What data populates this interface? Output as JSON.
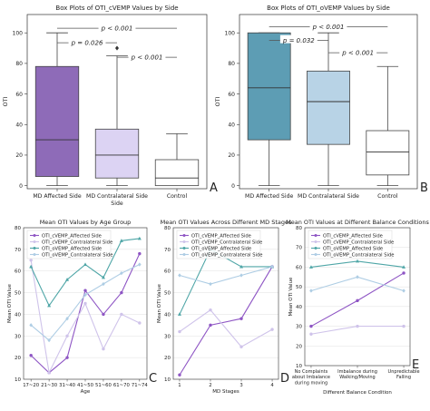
{
  "colors": {
    "purple": "#8e6bb8",
    "lavender": "#dcd3f3",
    "white": "#ffffff",
    "teal": "#5d9db4",
    "pale_blue": "#b8d3e6",
    "s_cvemp_aff": "#8e55c4",
    "s_cvemp_con": "#cfc3ea",
    "s_ovemp_aff": "#4fa6a7",
    "s_ovemp_con": "#aecde4"
  },
  "chart_data": [
    {
      "type": "box",
      "title": "Box Plots of OTI_cVEMP Values by Side",
      "ylabel": "OTI",
      "ylim": [
        -2,
        112
      ],
      "yticks": [
        0,
        20,
        40,
        60,
        80,
        100
      ],
      "panel_letter": "A",
      "categories": [
        "MD Affected Side",
        "MD Contralateral Side\nSide",
        "Control"
      ],
      "boxes": [
        {
          "min": 0,
          "q1": 6,
          "median": 30,
          "q3": 78,
          "max": 100,
          "color": "purple"
        },
        {
          "min": 0,
          "q1": 5,
          "median": 20,
          "q3": 37,
          "max": 85,
          "color": "lavender",
          "outliers": [
            90
          ]
        },
        {
          "min": 0,
          "q1": 0,
          "median": 5,
          "q3": 17,
          "max": 34,
          "color": "white"
        }
      ],
      "annotations": [
        {
          "text": "p < 0.001",
          "from": 0,
          "to": 2,
          "y": 103
        },
        {
          "text": "p = 0.026",
          "from": 0,
          "to": 1,
          "y": 93.5
        },
        {
          "text": "p < 0.001",
          "from": 1,
          "to": 2,
          "y": 84
        }
      ]
    },
    {
      "type": "box",
      "title": "Box Plots of OTI_oVEMP Values by Side",
      "ylabel": "OTI",
      "ylim": [
        -2,
        112
      ],
      "yticks": [
        0,
        20,
        40,
        60,
        80,
        100
      ],
      "panel_letter": "B",
      "categories": [
        "MD Affected Side",
        "MD Contralateral Side",
        "Control"
      ],
      "boxes": [
        {
          "min": 0,
          "q1": 30,
          "median": 64,
          "q3": 100,
          "max": 100,
          "color": "teal"
        },
        {
          "min": 0,
          "q1": 27,
          "median": 55,
          "q3": 75,
          "max": 100,
          "color": "pale_blue"
        },
        {
          "min": 0,
          "q1": 7,
          "median": 22,
          "q3": 36,
          "max": 78,
          "color": "white"
        }
      ],
      "annotations": [
        {
          "text": "p < 0.001",
          "from": 0,
          "to": 2,
          "y": 104
        },
        {
          "text": "p = 0.032",
          "from": 0,
          "to": 1,
          "y": 95
        },
        {
          "text": "p < 0.001",
          "from": 1,
          "to": 2,
          "y": 87
        }
      ]
    },
    {
      "type": "line",
      "title": "Mean OTI Values by Age Group",
      "xlabel": "Age",
      "ylabel": "Mean OTI Value",
      "ylim": [
        10,
        80
      ],
      "yticks": [
        10,
        20,
        30,
        40,
        50,
        60,
        70,
        80
      ],
      "panel_letter": "C",
      "categories": [
        "17~20",
        "21~30",
        "31~40",
        "41~50",
        "51~60",
        "61~70",
        "71~74"
      ],
      "series": [
        {
          "name": "OTI_cVEMP_Affected Side",
          "color": "s_cvemp_aff",
          "values": [
            21,
            13,
            20,
            51,
            40,
            50,
            68
          ]
        },
        {
          "name": "OTI_cVEMP_Contralateral Side",
          "color": "s_cvemp_con",
          "values": [
            65,
            13,
            30,
            45,
            24,
            40,
            36
          ]
        },
        {
          "name": "OTI_oVEMP_Affected Side",
          "color": "s_ovemp_aff",
          "values": [
            62,
            44,
            56,
            63,
            57,
            74,
            75
          ]
        },
        {
          "name": "OTI_oVEMP_Contralateral Side",
          "color": "s_ovemp_con",
          "values": [
            35,
            28,
            38,
            49,
            54,
            59,
            63
          ]
        }
      ]
    },
    {
      "type": "line",
      "title": "Mean OTI Values Across Different MD Stages",
      "xlabel": "MD Stages",
      "ylabel": "Mean OTI Value",
      "ylim": [
        10,
        80
      ],
      "yticks": [
        10,
        20,
        30,
        40,
        50,
        60,
        70,
        80
      ],
      "panel_letter": "D",
      "categories": [
        "1",
        "2",
        "3",
        "4"
      ],
      "series": [
        {
          "name": "OTI_cVEMP_Affected Side",
          "color": "s_cvemp_aff",
          "values": [
            12,
            35,
            38,
            62
          ]
        },
        {
          "name": "OTI_cVEMP_Contralateral Side",
          "color": "s_cvemp_con",
          "values": [
            32,
            42,
            25,
            33
          ]
        },
        {
          "name": "OTI_oVEMP_Affected Side",
          "color": "s_ovemp_aff",
          "values": [
            40,
            70,
            62,
            62
          ]
        },
        {
          "name": "OTI_oVEMP_Contralateral Side",
          "color": "s_ovemp_con",
          "values": [
            58,
            54,
            58,
            62
          ]
        }
      ]
    },
    {
      "type": "line",
      "title": "Mean OTI Values at Different Balance Conditions",
      "xlabel": "Different Balance Condition",
      "ylabel": "Mean OTI Value",
      "ylim": [
        10,
        80
      ],
      "yticks": [
        10,
        20,
        30,
        40,
        50,
        60,
        70,
        80
      ],
      "panel_letter": "E",
      "categories": [
        [
          "No Complaints",
          "about Imbalance",
          "during moving"
        ],
        [
          "Imbalance during",
          "Walking/Moving"
        ],
        [
          "Unpredictable",
          "Falling"
        ]
      ],
      "series": [
        {
          "name": "OTI_cVEMP_Affected Side",
          "color": "s_cvemp_aff",
          "values": [
            30,
            43,
            57
          ]
        },
        {
          "name": "OTI_cVEMP_Contralateral Side",
          "color": "s_cvemp_con",
          "values": [
            26,
            30,
            30
          ]
        },
        {
          "name": "OTI_oVEMP_Affected Side",
          "color": "s_ovemp_aff",
          "values": [
            60,
            63,
            60
          ]
        },
        {
          "name": "OTI_oVEMP_Contralateral Side",
          "color": "s_ovemp_con",
          "values": [
            48,
            55,
            48
          ]
        }
      ]
    }
  ]
}
